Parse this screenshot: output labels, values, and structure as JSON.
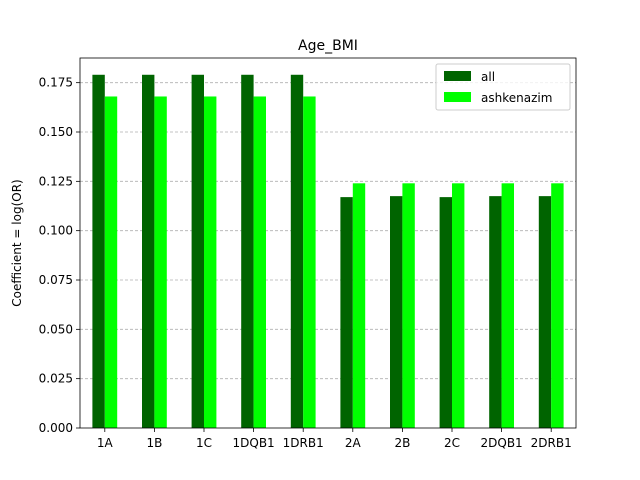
{
  "chart_data": {
    "type": "bar",
    "title": "Age_BMI",
    "xlabel": "",
    "ylabel": "Coefficient = log(OR)",
    "categories": [
      "1A",
      "1B",
      "1C",
      "1DQB1",
      "1DRB1",
      "2A",
      "2B",
      "2C",
      "2DQB1",
      "2DRB1"
    ],
    "series": [
      {
        "name": "all",
        "color": "#006400",
        "values": [
          0.179,
          0.179,
          0.179,
          0.179,
          0.179,
          0.117,
          0.1175,
          0.117,
          0.1175,
          0.1175
        ]
      },
      {
        "name": "ashkenazim",
        "color": "#00ff00",
        "values": [
          0.168,
          0.168,
          0.168,
          0.168,
          0.168,
          0.124,
          0.124,
          0.124,
          0.124,
          0.124
        ]
      }
    ],
    "ylim": [
      0,
      0.1875
    ],
    "yticks": [
      "0.000",
      "0.025",
      "0.050",
      "0.075",
      "0.100",
      "0.125",
      "0.150",
      "0.175"
    ],
    "grid": "y-dashed",
    "legend": "top-right"
  }
}
